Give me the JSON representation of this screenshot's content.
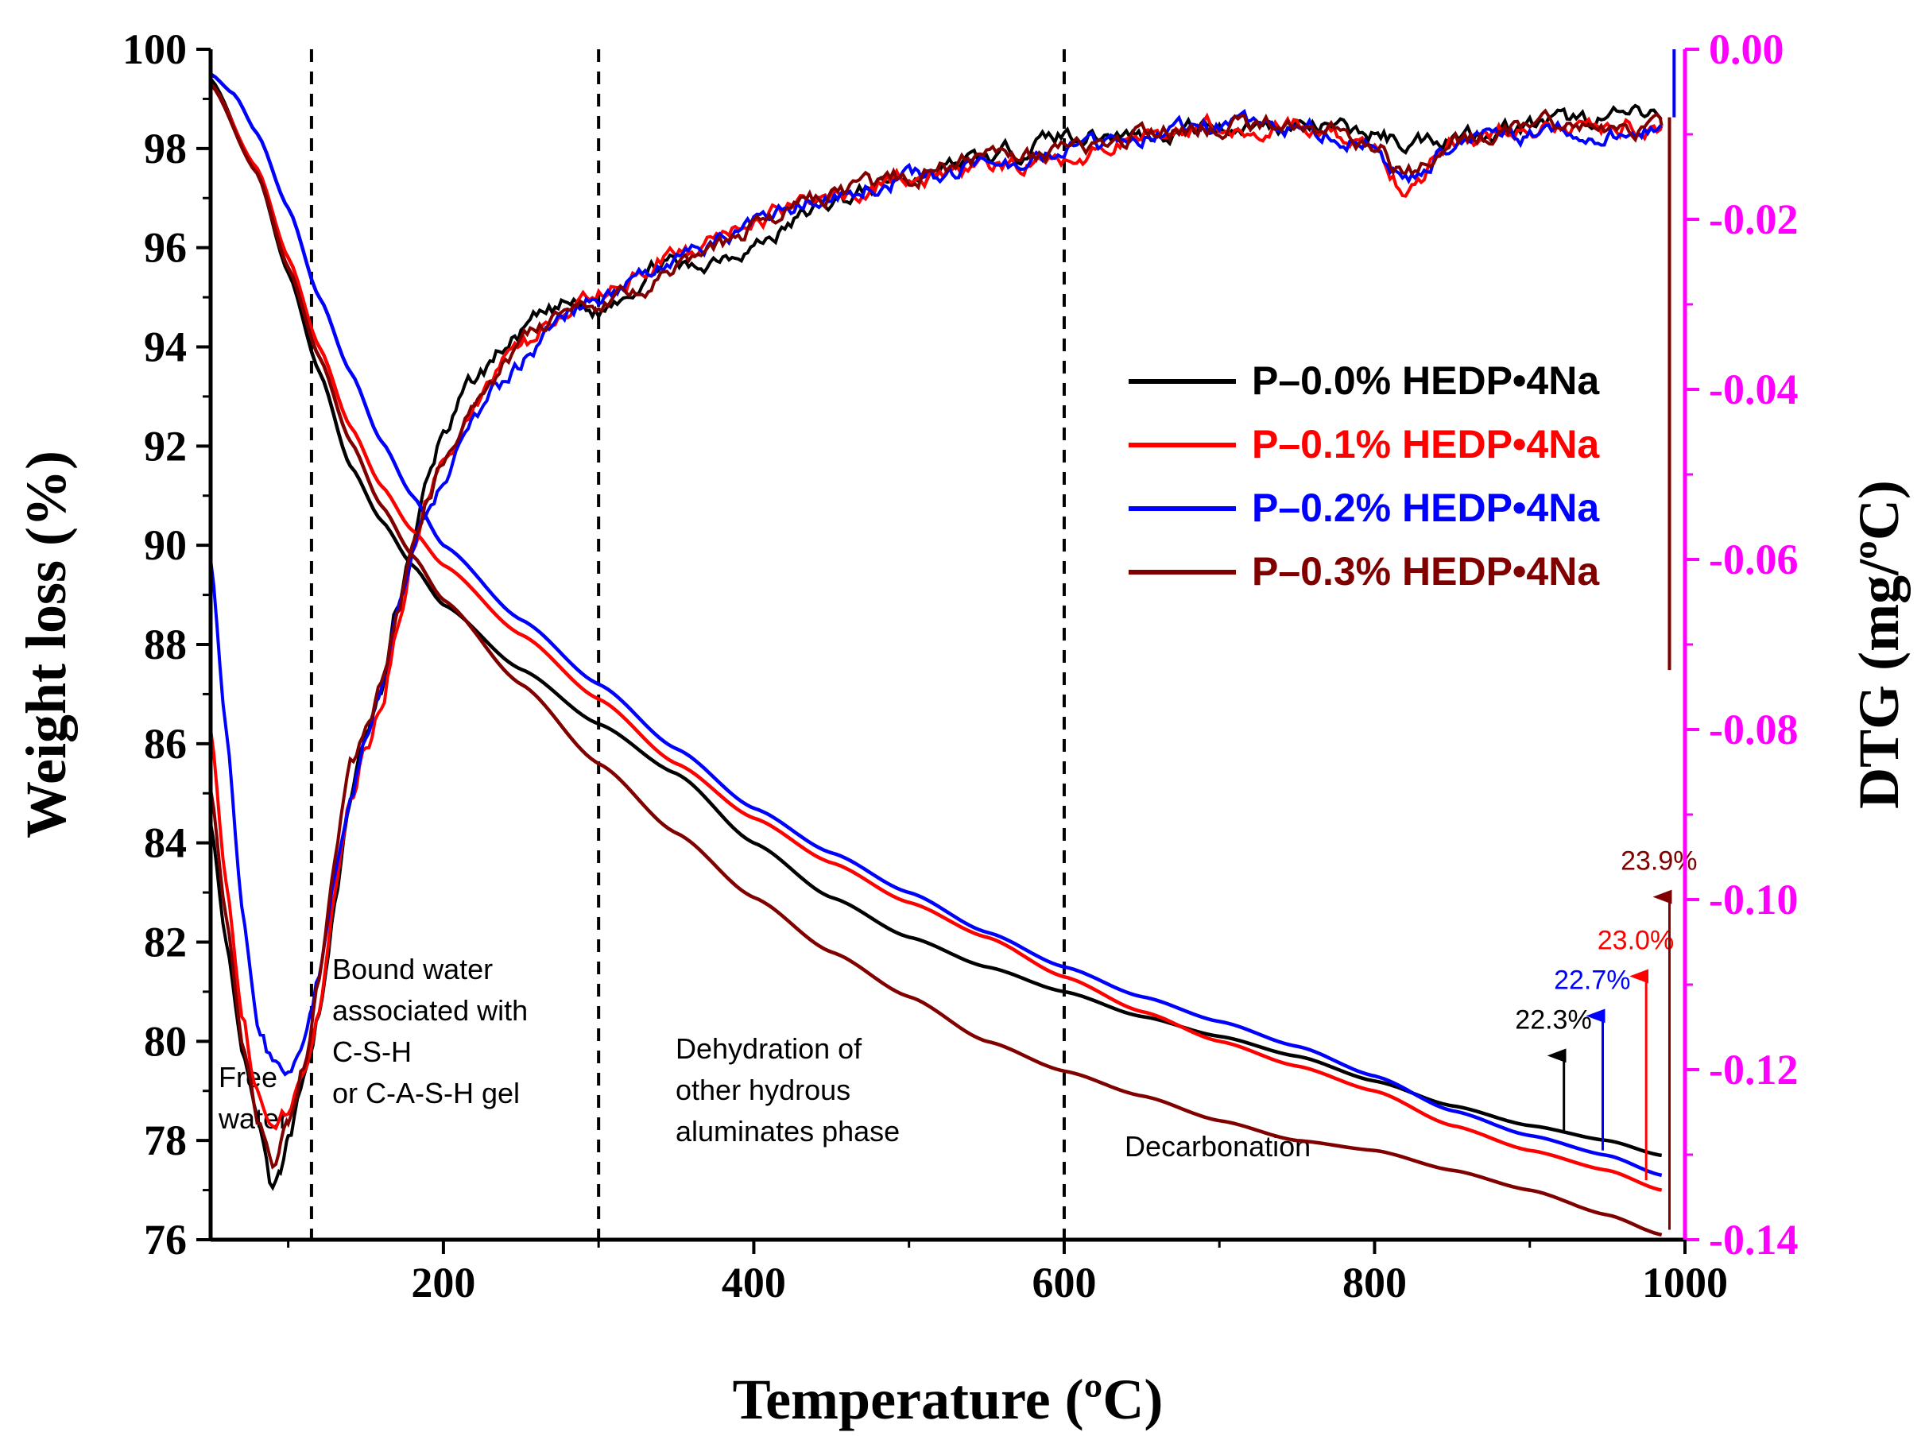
{
  "chart_data": {
    "type": "line",
    "xlabel": "Temperature (ºC)",
    "ylabel_left": "Weight loss (%)",
    "ylabel_right": "DTG (mg/ºC)",
    "xlim": [
      50,
      1000
    ],
    "ylim_left": [
      76,
      100
    ],
    "ylim_right": [
      -0.14,
      0.0
    ],
    "x_ticks": [
      "200",
      "400",
      "600",
      "800",
      "1000"
    ],
    "y_left_ticks": [
      "76",
      "78",
      "80",
      "82",
      "84",
      "86",
      "88",
      "90",
      "92",
      "94",
      "96",
      "98",
      "100"
    ],
    "y_right_ticks": [
      "-0.14",
      "-0.12",
      "-0.10",
      "-0.08",
      "-0.06",
      "-0.04",
      "-0.02",
      "0.00"
    ],
    "right_axis_color": "#ff00ff",
    "region_boundaries": [
      115,
      300,
      600
    ],
    "regions": [
      {
        "x": 75,
        "lines": [
          "Free",
          "water"
        ]
      },
      {
        "x": 210,
        "lines": [
          "Bound water",
          "associated with",
          "C-S-H",
          "or C-A-S-H gel"
        ]
      },
      {
        "x": 450,
        "lines": [
          "Dehydration of",
          "other hydrous",
          "aluminates phase"
        ]
      },
      {
        "x": 740,
        "lines": [
          "Decarbonation"
        ]
      }
    ],
    "series": [
      {
        "name": "P–0.0% HEDP•4Na",
        "color": "#000000",
        "tg": {
          "x": [
            50,
            80,
            100,
            120,
            140,
            160,
            180,
            200,
            250,
            300,
            350,
            400,
            450,
            500,
            550,
            600,
            650,
            700,
            750,
            800,
            850,
            900,
            950,
            985
          ],
          "y": [
            99.4,
            97.5,
            95.5,
            93.5,
            91.6,
            90.5,
            89.6,
            88.8,
            87.5,
            86.4,
            85.4,
            84.0,
            82.9,
            82.1,
            81.5,
            81.0,
            80.5,
            80.1,
            79.7,
            79.2,
            78.7,
            78.3,
            78.0,
            77.7
          ]
        },
        "dtg": {
          "x": [
            50,
            60,
            70,
            80,
            90,
            95,
            100,
            110,
            120,
            130,
            140,
            150,
            160,
            170,
            180,
            190,
            200,
            220,
            240,
            260,
            280,
            300,
            320,
            340,
            360,
            380,
            400,
            450,
            500,
            550,
            600,
            650,
            700,
            750,
            800,
            820,
            850,
            900,
            950,
            985
          ],
          "y": [
            -0.091,
            -0.105,
            -0.117,
            -0.127,
            -0.135,
            -0.133,
            -0.129,
            -0.122,
            -0.113,
            -0.101,
            -0.088,
            -0.081,
            -0.076,
            -0.066,
            -0.058,
            -0.051,
            -0.045,
            -0.039,
            -0.035,
            -0.032,
            -0.03,
            -0.031,
            -0.028,
            -0.025,
            -0.026,
            -0.024,
            -0.023,
            -0.018,
            -0.015,
            -0.013,
            -0.01,
            -0.01,
            -0.009,
            -0.009,
            -0.01,
            -0.011,
            -0.01,
            -0.009,
            -0.008,
            -0.008
          ]
        }
      },
      {
        "name": "P–0.1% HEDP•4Na",
        "color": "#ff0000",
        "tg": {
          "x": [
            50,
            80,
            100,
            120,
            140,
            160,
            180,
            200,
            250,
            300,
            350,
            400,
            450,
            500,
            550,
            600,
            650,
            700,
            750,
            800,
            850,
            900,
            950,
            985
          ],
          "y": [
            99.3,
            97.6,
            95.8,
            94.0,
            92.4,
            91.2,
            90.3,
            89.6,
            88.2,
            86.9,
            85.6,
            84.5,
            83.6,
            82.8,
            82.1,
            81.3,
            80.6,
            80.0,
            79.5,
            79.0,
            78.3,
            77.8,
            77.4,
            77.0
          ]
        },
        "dtg": {
          "x": [
            50,
            60,
            70,
            80,
            90,
            100,
            110,
            120,
            130,
            140,
            150,
            160,
            170,
            180,
            190,
            200,
            220,
            240,
            260,
            280,
            300,
            320,
            340,
            360,
            380,
            400,
            450,
            500,
            550,
            600,
            650,
            700,
            750,
            800,
            820,
            850,
            900,
            950,
            985
          ],
          "y": [
            -0.08,
            -0.098,
            -0.113,
            -0.123,
            -0.127,
            -0.125,
            -0.121,
            -0.112,
            -0.1,
            -0.089,
            -0.082,
            -0.077,
            -0.068,
            -0.06,
            -0.053,
            -0.048,
            -0.042,
            -0.037,
            -0.034,
            -0.031,
            -0.029,
            -0.027,
            -0.025,
            -0.024,
            -0.022,
            -0.02,
            -0.017,
            -0.015,
            -0.014,
            -0.013,
            -0.01,
            -0.009,
            -0.009,
            -0.011,
            -0.017,
            -0.011,
            -0.009,
            -0.009,
            -0.009
          ]
        }
      },
      {
        "name": "P–0.2% HEDP•4Na",
        "color": "#0000ff",
        "tg": {
          "x": [
            50,
            65,
            80,
            100,
            120,
            140,
            160,
            180,
            200,
            250,
            300,
            350,
            400,
            450,
            500,
            550,
            600,
            650,
            700,
            750,
            800,
            850,
            900,
            950,
            985
          ],
          "y": [
            99.5,
            99.1,
            98.3,
            96.8,
            95.0,
            93.5,
            92.1,
            91.0,
            90.0,
            88.5,
            87.2,
            85.9,
            84.7,
            83.8,
            83.0,
            82.2,
            81.5,
            80.9,
            80.4,
            79.9,
            79.3,
            78.6,
            78.1,
            77.7,
            77.3
          ]
        },
        "dtg": {
          "x": [
            50,
            60,
            70,
            80,
            90,
            100,
            110,
            120,
            130,
            140,
            150,
            160,
            170,
            180,
            190,
            200,
            220,
            240,
            260,
            280,
            300,
            320,
            340,
            360,
            380,
            400,
            450,
            500,
            550,
            600,
            650,
            700,
            750,
            800,
            820,
            850,
            900,
            950,
            985
          ],
          "y": [
            -0.06,
            -0.08,
            -0.1,
            -0.114,
            -0.119,
            -0.121,
            -0.117,
            -0.109,
            -0.098,
            -0.088,
            -0.08,
            -0.075,
            -0.067,
            -0.059,
            -0.054,
            -0.05,
            -0.044,
            -0.039,
            -0.035,
            -0.031,
            -0.029,
            -0.027,
            -0.026,
            -0.024,
            -0.022,
            -0.02,
            -0.017,
            -0.015,
            -0.014,
            -0.012,
            -0.01,
            -0.009,
            -0.009,
            -0.011,
            -0.016,
            -0.011,
            -0.01,
            -0.01,
            -0.009
          ]
        }
      },
      {
        "name": "P–0.3% HEDP•4Na",
        "color": "#800000",
        "tg": {
          "x": [
            50,
            80,
            100,
            120,
            140,
            160,
            180,
            200,
            250,
            300,
            350,
            400,
            450,
            500,
            550,
            600,
            650,
            700,
            750,
            800,
            850,
            900,
            950,
            985
          ],
          "y": [
            99.3,
            97.5,
            95.6,
            93.8,
            92.1,
            90.8,
            89.8,
            88.9,
            87.2,
            85.6,
            84.2,
            82.9,
            81.8,
            80.9,
            80.0,
            79.4,
            78.9,
            78.4,
            78.0,
            77.8,
            77.4,
            77.0,
            76.5,
            76.1
          ]
        },
        "dtg": {
          "x": [
            50,
            60,
            70,
            80,
            90,
            95,
            100,
            110,
            120,
            130,
            140,
            150,
            160,
            170,
            180,
            190,
            200,
            220,
            240,
            260,
            280,
            300,
            320,
            340,
            360,
            380,
            400,
            450,
            500,
            550,
            600,
            650,
            700,
            750,
            800,
            820,
            850,
            900,
            950,
            985
          ],
          "y": [
            -0.087,
            -0.102,
            -0.116,
            -0.126,
            -0.131,
            -0.129,
            -0.126,
            -0.119,
            -0.108,
            -0.096,
            -0.085,
            -0.079,
            -0.075,
            -0.067,
            -0.059,
            -0.053,
            -0.048,
            -0.042,
            -0.037,
            -0.033,
            -0.031,
            -0.03,
            -0.029,
            -0.027,
            -0.025,
            -0.023,
            -0.021,
            -0.017,
            -0.015,
            -0.013,
            -0.012,
            -0.01,
            -0.009,
            -0.009,
            -0.011,
            -0.015,
            -0.011,
            -0.009,
            -0.009,
            -0.009
          ]
        }
      }
    ],
    "mass_loss_annotations": [
      {
        "label": "22.3%",
        "x": 922,
        "y_from": 78.2,
        "y_to": 80.0,
        "color": "#000000"
      },
      {
        "label": "22.7%",
        "x": 947,
        "y_from": 77.8,
        "y_to": 80.8,
        "color": "#0000ff"
      },
      {
        "label": "23.0%",
        "x": 975,
        "y_from": 77.2,
        "y_to": 81.6,
        "color": "#ff0000"
      },
      {
        "label": "23.9%",
        "x": 990,
        "y_from": 76.2,
        "y_to": 83.2,
        "color": "#800000"
      }
    ]
  }
}
